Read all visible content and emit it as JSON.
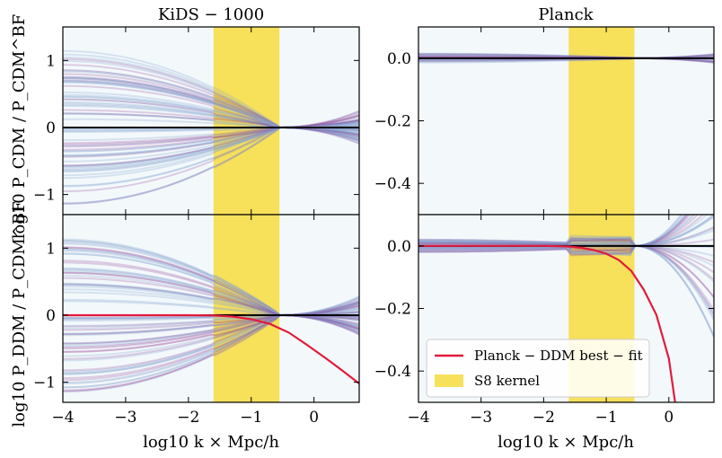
{
  "chart_data": [
    {
      "type": "line",
      "title": "KiDS − 1000",
      "xlabel": "",
      "ylabel": "log10 P_CDM / P_CDM^BF",
      "xlim": [
        -4,
        0.72
      ],
      "ylim": [
        -1.3,
        1.5
      ],
      "xticks": [],
      "yticks": [
        1,
        0,
        -1
      ],
      "yticklabels": [
        "1",
        "0",
        "−1"
      ],
      "band": [
        -1.6,
        -0.55
      ],
      "reference_line": 0,
      "ensemble": {
        "center": 0.2,
        "spread": 1.15,
        "right_spread": 0.25,
        "curves": 70
      },
      "series": []
    },
    {
      "type": "line",
      "title": "Planck",
      "xlabel": "",
      "ylabel": "",
      "xlim": [
        -4,
        0.72
      ],
      "ylim": [
        -0.5,
        0.1
      ],
      "xticks": [],
      "yticks": [
        0.0,
        -0.2,
        -0.4
      ],
      "yticklabels": [
        "0.0",
        "−0.2",
        "−0.4"
      ],
      "band": [
        -1.6,
        -0.55
      ],
      "reference_line": 0,
      "ensemble": {
        "center": 0.0,
        "spread": 0.015,
        "right_spread": 0.015,
        "curves": 25
      },
      "series": []
    },
    {
      "type": "line",
      "title": "",
      "xlabel": "log10 k × Mpc/h",
      "ylabel": "log10 P_DDM / P_CDM^BF",
      "xlim": [
        -4,
        0.72
      ],
      "ylim": [
        -1.3,
        1.5
      ],
      "xticks": [
        -4,
        -3,
        -2,
        -1,
        0
      ],
      "xticklabels": [
        "−4",
        "−3",
        "−2",
        "−1",
        "0"
      ],
      "yticks": [
        1,
        0,
        -1
      ],
      "yticklabels": [
        "1",
        "0",
        "−1"
      ],
      "band": [
        -1.6,
        -0.55
      ],
      "reference_line": 0,
      "ensemble": {
        "center": 0.2,
        "spread": 1.15,
        "right_spread": 0.3,
        "curves": 70
      },
      "series": [
        {
          "name": "Planck − DDM best − fit",
          "color": "#e31a3c",
          "x": [
            -4,
            -2.0,
            -1.6,
            -1.3,
            -1.0,
            -0.7,
            -0.4,
            -0.1,
            0.2,
            0.5,
            0.72
          ],
          "y": [
            0,
            0,
            -0.005,
            -0.02,
            -0.06,
            -0.13,
            -0.26,
            -0.45,
            -0.65,
            -0.86,
            -1.02
          ]
        }
      ]
    },
    {
      "type": "line",
      "title": "",
      "xlabel": "log10 k × Mpc/h",
      "ylabel": "",
      "xlim": [
        -4,
        0.72
      ],
      "ylim": [
        -0.5,
        0.1
      ],
      "xticks": [
        -4,
        -3,
        -2,
        -1,
        0
      ],
      "xticklabels": [
        "−4",
        "−3",
        "−2",
        "−1",
        "0"
      ],
      "yticks": [
        0.0,
        -0.2,
        -0.4
      ],
      "yticklabels": [
        "0.0",
        "−0.2",
        "−0.4"
      ],
      "band": [
        -1.6,
        -0.55
      ],
      "reference_line": 0,
      "ensemble": {
        "center": 0.0,
        "spread": 0.02,
        "right_spread": 0.3,
        "curves": 40
      },
      "series": [
        {
          "name": "Planck − DDM best − fit",
          "color": "#e31a3c",
          "x": [
            -4,
            -2.0,
            -1.6,
            -1.4,
            -1.2,
            -1.0,
            -0.8,
            -0.6,
            -0.4,
            -0.2,
            0.0,
            0.1
          ],
          "y": [
            0,
            0,
            -0.002,
            -0.006,
            -0.013,
            -0.025,
            -0.045,
            -0.08,
            -0.14,
            -0.22,
            -0.36,
            -0.5
          ]
        }
      ],
      "legend": {
        "location": "lower-left",
        "entries": [
          {
            "label": "Planck − DDM best − fit",
            "kind": "line",
            "color": "#e31a3c"
          },
          {
            "label": "S8 kernel",
            "kind": "patch",
            "color": "#f7dc3d"
          }
        ]
      }
    }
  ],
  "colors": {
    "band": "#f7dc3d",
    "ensemble_blue": "#8aa6d2",
    "ensemble_purple": "#8a2a8a",
    "background_tint": "#f3f9fb",
    "reference_line": "#000000"
  }
}
